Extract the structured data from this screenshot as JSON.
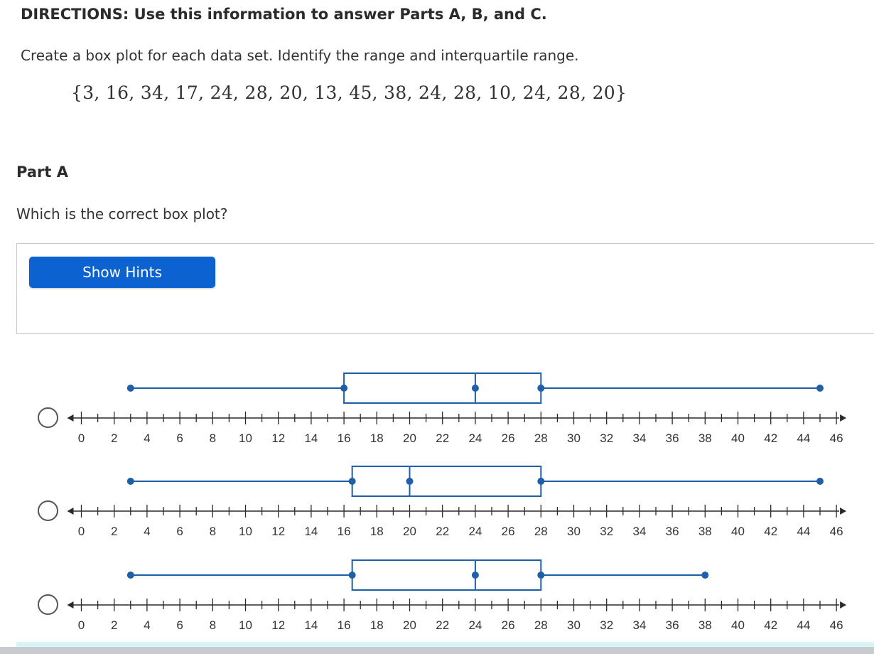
{
  "directions": "DIRECTIONS: Use this information to answer Parts A, B, and C.",
  "instructions": "Create a box plot for each data set. Identify the range and interquartile range.",
  "dataset": "{3, 16, 34, 17, 24, 28, 20, 13, 45, 38, 24, 28, 10, 24, 28, 20}",
  "part_title": "Part A",
  "question": "Which is the correct box plot?",
  "hints_button": "Show Hints",
  "accent_color": "#0d62d1",
  "plot_color": "#1e5fa8",
  "chart_data": [
    {
      "type": "boxplot",
      "title": "",
      "xlim": [
        0,
        46
      ],
      "tick_step": 1,
      "tick_labels": [
        "0",
        "2",
        "4",
        "6",
        "8",
        "10",
        "12",
        "14",
        "16",
        "18",
        "20",
        "22",
        "24",
        "26",
        "28",
        "30",
        "32",
        "34",
        "36",
        "38",
        "40",
        "42",
        "44",
        "46"
      ],
      "min": 3,
      "q1": 16,
      "median": 24,
      "q3": 28,
      "max": 45
    },
    {
      "type": "boxplot",
      "title": "",
      "xlim": [
        0,
        46
      ],
      "tick_step": 1,
      "tick_labels": [
        "0",
        "2",
        "4",
        "6",
        "8",
        "10",
        "12",
        "14",
        "16",
        "18",
        "20",
        "22",
        "24",
        "26",
        "28",
        "30",
        "32",
        "34",
        "36",
        "38",
        "40",
        "42",
        "44",
        "46"
      ],
      "min": 3,
      "q1": 16.5,
      "median": 20,
      "q3": 28,
      "max": 45
    },
    {
      "type": "boxplot",
      "title": "",
      "xlim": [
        0,
        46
      ],
      "tick_step": 1,
      "tick_labels": [
        "0",
        "2",
        "4",
        "6",
        "8",
        "10",
        "12",
        "14",
        "16",
        "18",
        "20",
        "22",
        "24",
        "26",
        "28",
        "30",
        "32",
        "34",
        "36",
        "38",
        "40",
        "42",
        "44",
        "46"
      ],
      "min": 3,
      "q1": 16.5,
      "median": 24,
      "q3": 28,
      "max": 38
    }
  ]
}
